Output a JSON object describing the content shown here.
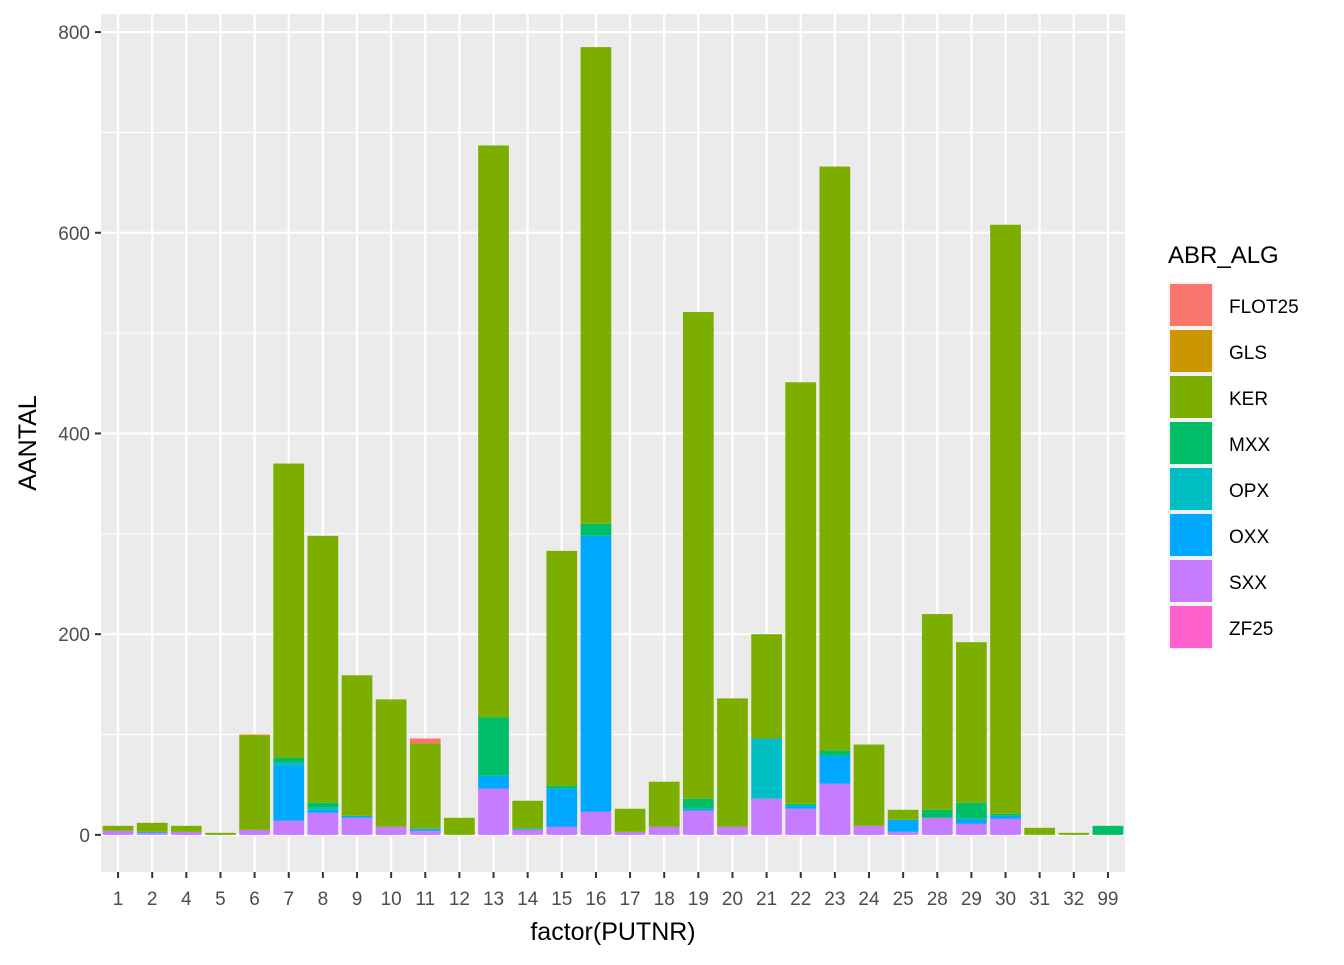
{
  "chart_data": {
    "type": "bar",
    "stacked": true,
    "xlabel": "factor(PUTNR)",
    "ylabel": "AANTAL",
    "ylim": [
      -37,
      818
    ],
    "yticks": [
      0,
      200,
      400,
      600,
      800
    ],
    "grid": true,
    "legend_position": "right",
    "legend_title": "ABR_ALG",
    "categories": [
      "1",
      "2",
      "4",
      "5",
      "6",
      "7",
      "8",
      "9",
      "10",
      "11",
      "12",
      "13",
      "14",
      "15",
      "16",
      "17",
      "18",
      "19",
      "20",
      "21",
      "22",
      "23",
      "24",
      "25",
      "28",
      "29",
      "30",
      "31",
      "32",
      "99"
    ],
    "series": [
      {
        "name": "FLOT25",
        "color": "#F8766D",
        "values": [
          0,
          0,
          0,
          0,
          0,
          0,
          0,
          0,
          0,
          5,
          0,
          0,
          0,
          0,
          0,
          0,
          0,
          0,
          0,
          0,
          0,
          0,
          0,
          0,
          0,
          0,
          0,
          0,
          0,
          0
        ]
      },
      {
        "name": "GLS",
        "color": "#CD9600",
        "values": [
          0,
          0,
          0,
          0,
          1,
          0,
          0,
          0,
          0,
          0,
          0,
          0,
          0,
          0,
          0,
          0,
          0,
          0,
          0,
          0,
          0,
          0,
          0,
          0,
          0,
          0,
          0,
          0,
          0,
          0
        ]
      },
      {
        "name": "KER",
        "color": "#7CAE00",
        "values": [
          5,
          9,
          6,
          2,
          94,
          293,
          266,
          140,
          127,
          85,
          17,
          570,
          28,
          234,
          475,
          23,
          45,
          485,
          128,
          104,
          420,
          582,
          81,
          10,
          195,
          160,
          587,
          7,
          2,
          0
        ]
      },
      {
        "name": "MXX",
        "color": "#00BE67",
        "values": [
          0,
          0,
          0,
          0,
          0,
          5,
          5,
          0,
          0,
          0,
          0,
          58,
          0,
          3,
          12,
          0,
          0,
          10,
          0,
          0,
          2,
          5,
          0,
          0,
          8,
          16,
          2,
          0,
          0,
          9
        ]
      },
      {
        "name": "OPX",
        "color": "#00BFC4",
        "values": [
          0,
          0,
          0,
          0,
          0,
          3,
          2,
          0,
          0,
          0,
          0,
          0,
          0,
          0,
          0,
          0,
          0,
          0,
          0,
          60,
          0,
          0,
          0,
          0,
          0,
          0,
          0,
          0,
          0,
          0
        ]
      },
      {
        "name": "OXX",
        "color": "#00A9FF",
        "values": [
          0,
          1,
          0,
          0,
          0,
          55,
          3,
          2,
          0,
          2,
          0,
          13,
          1,
          38,
          275,
          0,
          0,
          2,
          0,
          0,
          3,
          28,
          0,
          12,
          0,
          5,
          3,
          0,
          0,
          0
        ]
      },
      {
        "name": "SXX",
        "color": "#C77CFF",
        "values": [
          4,
          2,
          3,
          0,
          5,
          14,
          22,
          17,
          8,
          4,
          0,
          46,
          5,
          8,
          23,
          3,
          8,
          24,
          8,
          36,
          26,
          51,
          9,
          3,
          17,
          11,
          16,
          0,
          0,
          0
        ]
      },
      {
        "name": "ZF25",
        "color": "#FF61CC",
        "values": [
          0,
          0,
          0,
          0,
          0,
          0,
          0,
          0,
          0,
          0,
          0,
          0,
          0,
          0,
          0,
          0,
          0,
          0,
          0,
          0,
          0,
          0,
          0,
          0,
          0,
          0,
          0,
          0,
          0,
          0
        ]
      }
    ],
    "stack_order": [
      "SXX",
      "OXX",
      "OPX",
      "MXX",
      "KER",
      "GLS",
      "FLOT25",
      "ZF25"
    ]
  }
}
